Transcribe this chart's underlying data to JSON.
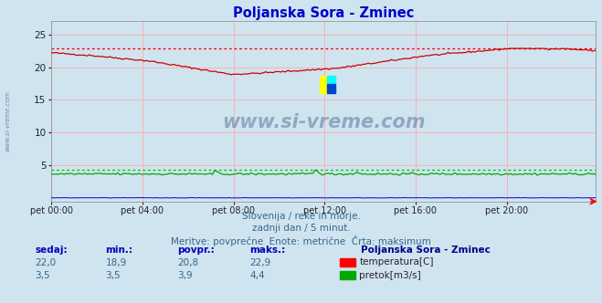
{
  "title": "Poljanska Sora - Zminec",
  "title_color": "#0000cc",
  "bg_color": "#d0e4f0",
  "plot_bg_color": "#d0e4f0",
  "grid_color": "#ffaaaa",
  "xlabel_ticks": [
    "pet 00:00",
    "pet 04:00",
    "pet 08:00",
    "pet 12:00",
    "pet 16:00",
    "pet 20:00"
  ],
  "xlabel_tick_positions": [
    0,
    48,
    96,
    144,
    192,
    240
  ],
  "yticks": [
    5,
    10,
    15,
    20,
    25
  ],
  "ylim": [
    -0.5,
    27
  ],
  "xlim": [
    0,
    287
  ],
  "temp_color": "#cc0000",
  "temp_max_color": "#ff0000",
  "flow_color": "#00aa00",
  "flow_max_color": "#00cc00",
  "height_color": "#0000cc",
  "temp_max": 22.9,
  "flow_max": 4.4,
  "text_line1": "Slovenija / reke in morje.",
  "text_line2": "zadnji dan / 5 minut.",
  "text_line3": "Meritve: povprečne  Enote: metrične  Črta: maksimum",
  "stat_headers": [
    "sedaj:",
    "min.:",
    "povpr.:",
    "maks.:"
  ],
  "stat_temp": [
    "22,0",
    "18,9",
    "20,8",
    "22,9"
  ],
  "stat_flow": [
    "3,5",
    "3,5",
    "3,9",
    "4,4"
  ],
  "legend_title": "Poljanska Sora - Zminec",
  "legend_temp": "temperatura[C]",
  "legend_flow": "pretok[m3/s]",
  "watermark": "www.si-vreme.com",
  "watermark_color": "#1a3a6b",
  "watermark_alpha": 0.35,
  "sidebar_text": "www.si-vreme.com"
}
